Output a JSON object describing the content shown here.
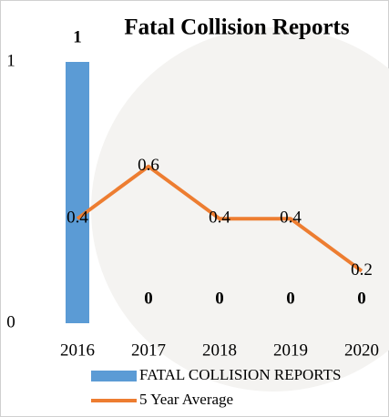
{
  "chart_data": {
    "type": "bar_line",
    "title": "Fatal Collision Reports",
    "categories": [
      "2016",
      "2017",
      "2018",
      "2019",
      "2020"
    ],
    "series": [
      {
        "name": "FATAL COLLISION REPORTS",
        "type": "bar",
        "color": "#5b9bd5",
        "values": [
          1,
          0,
          0,
          0,
          0
        ]
      },
      {
        "name": "5 Year Average",
        "type": "line",
        "color": "#ed7d31",
        "values": [
          0.4,
          0.6,
          0.4,
          0.4,
          0.2
        ]
      }
    ],
    "ylim": [
      0,
      1
    ],
    "yticks": [
      0,
      1
    ],
    "grid": false
  }
}
